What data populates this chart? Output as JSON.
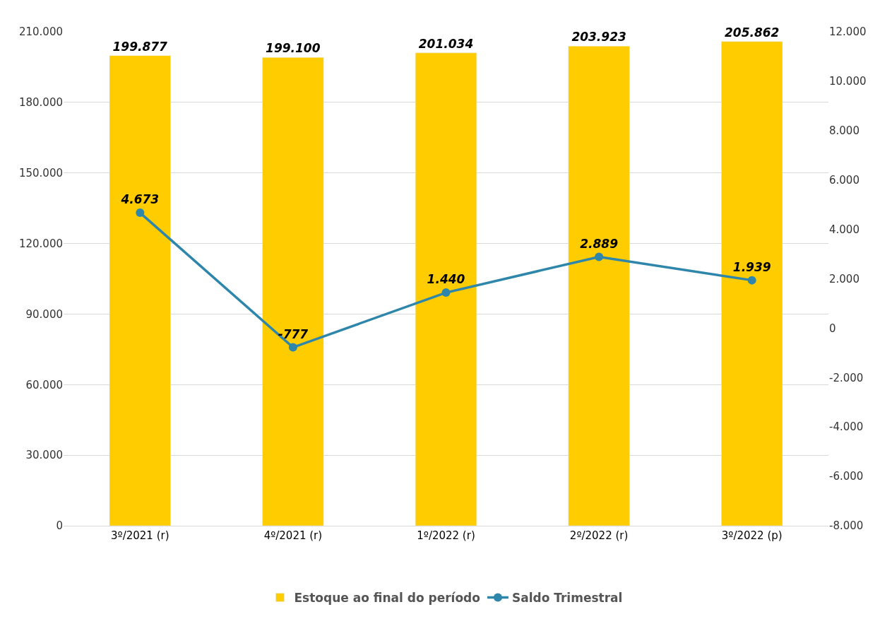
{
  "chart_data": {
    "type": "bar",
    "categories": [
      "3º/2021 (r)",
      "4º/2021 (r)",
      "1º/2022 (r)",
      "2º/2022 (r)",
      "3º/2022 (p)"
    ],
    "series": [
      {
        "name": "Estoque ao final do período",
        "color": "#ffcc00",
        "values": [
          199877,
          199100,
          201034,
          203923,
          205862
        ],
        "value_labels": [
          "199.877",
          "199.100",
          "201.034",
          "203.923",
          "205.862"
        ]
      },
      {
        "name": "Saldo Trimestral",
        "type": "line",
        "axis": "y2",
        "color": "#2e86ab",
        "values": [
          4673,
          -777,
          1440,
          2889,
          1939
        ],
        "value_labels": [
          "4.673",
          "-777",
          "1.440",
          "2.889",
          "1.939"
        ]
      }
    ],
    "ylim": [
      0,
      210000
    ],
    "yticks": [
      0,
      {
        "value": 30000,
        "label": "30.000"
      },
      {
        "value": 60000,
        "label": "60.000"
      },
      {
        "value": 90000,
        "label": "90.000"
      },
      {
        "value": 120000,
        "label": "120.000"
      },
      {
        "value": 150000,
        "label": "150.000"
      },
      {
        "value": 180000,
        "label": "180.000"
      },
      {
        "value": 210000,
        "label": "210.000"
      }
    ],
    "y2lim": [
      -8000,
      12000
    ],
    "y2ticks": [
      {
        "value": -8000,
        "label": "-8.000"
      },
      {
        "value": -6000,
        "label": "-6.000"
      },
      {
        "value": -4000,
        "label": "-4.000"
      },
      {
        "value": -2000,
        "label": "-2.000"
      },
      0,
      {
        "value": 2000,
        "label": "2.000"
      },
      {
        "value": 4000,
        "label": "4.000"
      },
      {
        "value": 6000,
        "label": "6.000"
      },
      {
        "value": 8000,
        "label": "8.000"
      },
      {
        "value": 10000,
        "label": "10.000"
      },
      {
        "value": 12000,
        "label": "12.000"
      }
    ],
    "grid": "y",
    "legend": "bottom",
    "marker": "circle",
    "line_style": "solid"
  }
}
